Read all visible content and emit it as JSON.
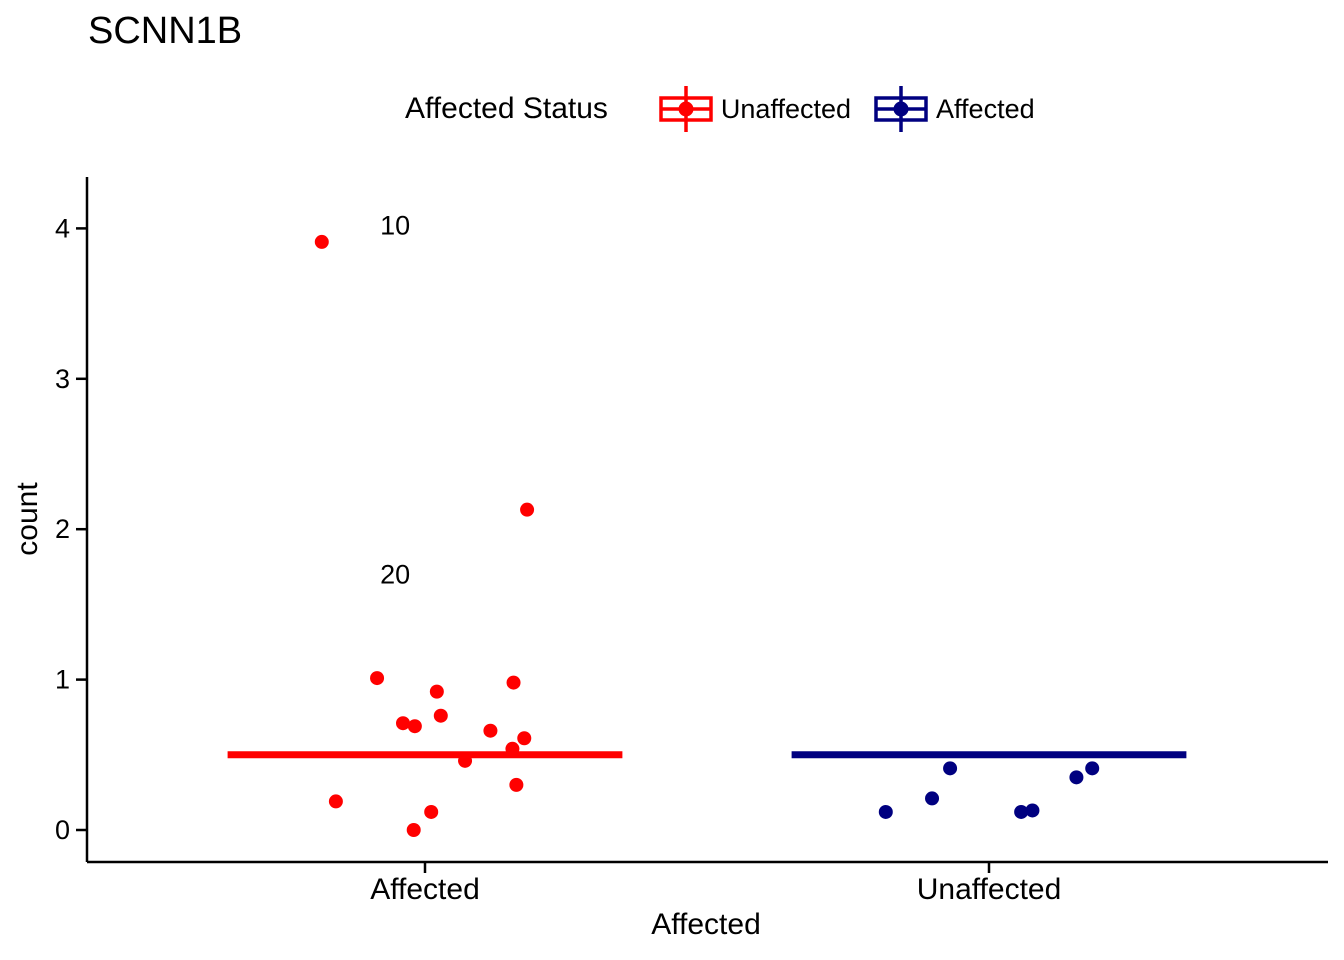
{
  "chart_data": {
    "type": "scatter",
    "title": "SCNN1B",
    "xlabel": "Affected",
    "ylabel": "count",
    "categories": [
      "Affected",
      "Unaffected"
    ],
    "y_ticks": [
      0,
      1,
      2,
      3,
      4
    ],
    "ylim": [
      -0.25,
      4.35
    ],
    "grid": "off",
    "legend": {
      "title": "Affected Status",
      "position": "top",
      "entries": [
        {
          "label": "Unaffected",
          "color": "#FF0000"
        },
        {
          "label": "Affected",
          "color": "#000080"
        }
      ]
    },
    "crossbars": [
      {
        "category": "Affected",
        "x": 1,
        "value": 0.5,
        "color": "#FF0000",
        "width": 0.7
      },
      {
        "category": "Unaffected",
        "x": 2,
        "value": 0.5,
        "color": "#000080",
        "width": 0.7
      }
    ],
    "series": [
      {
        "name": "Affected",
        "color": "#FF0000",
        "points": [
          {
            "x": 0.817,
            "y": 3.91
          },
          {
            "x": 1.181,
            "y": 2.13
          },
          {
            "x": 0.915,
            "y": 1.01
          },
          {
            "x": 1.157,
            "y": 0.98
          },
          {
            "x": 1.021,
            "y": 0.92
          },
          {
            "x": 1.028,
            "y": 0.76
          },
          {
            "x": 0.961,
            "y": 0.71
          },
          {
            "x": 0.982,
            "y": 0.69
          },
          {
            "x": 1.116,
            "y": 0.66
          },
          {
            "x": 1.176,
            "y": 0.61
          },
          {
            "x": 1.155,
            "y": 0.54
          },
          {
            "x": 1.071,
            "y": 0.46
          },
          {
            "x": 1.162,
            "y": 0.3
          },
          {
            "x": 0.842,
            "y": 0.19
          },
          {
            "x": 1.011,
            "y": 0.12
          },
          {
            "x": 0.98,
            "y": 0.0
          }
        ]
      },
      {
        "name": "Unaffected",
        "color": "#000080",
        "points": [
          {
            "x": 1.817,
            "y": 0.12
          },
          {
            "x": 1.899,
            "y": 0.21
          },
          {
            "x": 1.931,
            "y": 0.41
          },
          {
            "x": 2.057,
            "y": 0.12
          },
          {
            "x": 2.077,
            "y": 0.13
          },
          {
            "x": 2.155,
            "y": 0.35
          },
          {
            "x": 2.183,
            "y": 0.41
          }
        ]
      }
    ],
    "annotations": [
      {
        "text": "10",
        "x": 0.947,
        "y": 4.02
      },
      {
        "text": "20",
        "x": 0.947,
        "y": 1.7
      }
    ]
  }
}
